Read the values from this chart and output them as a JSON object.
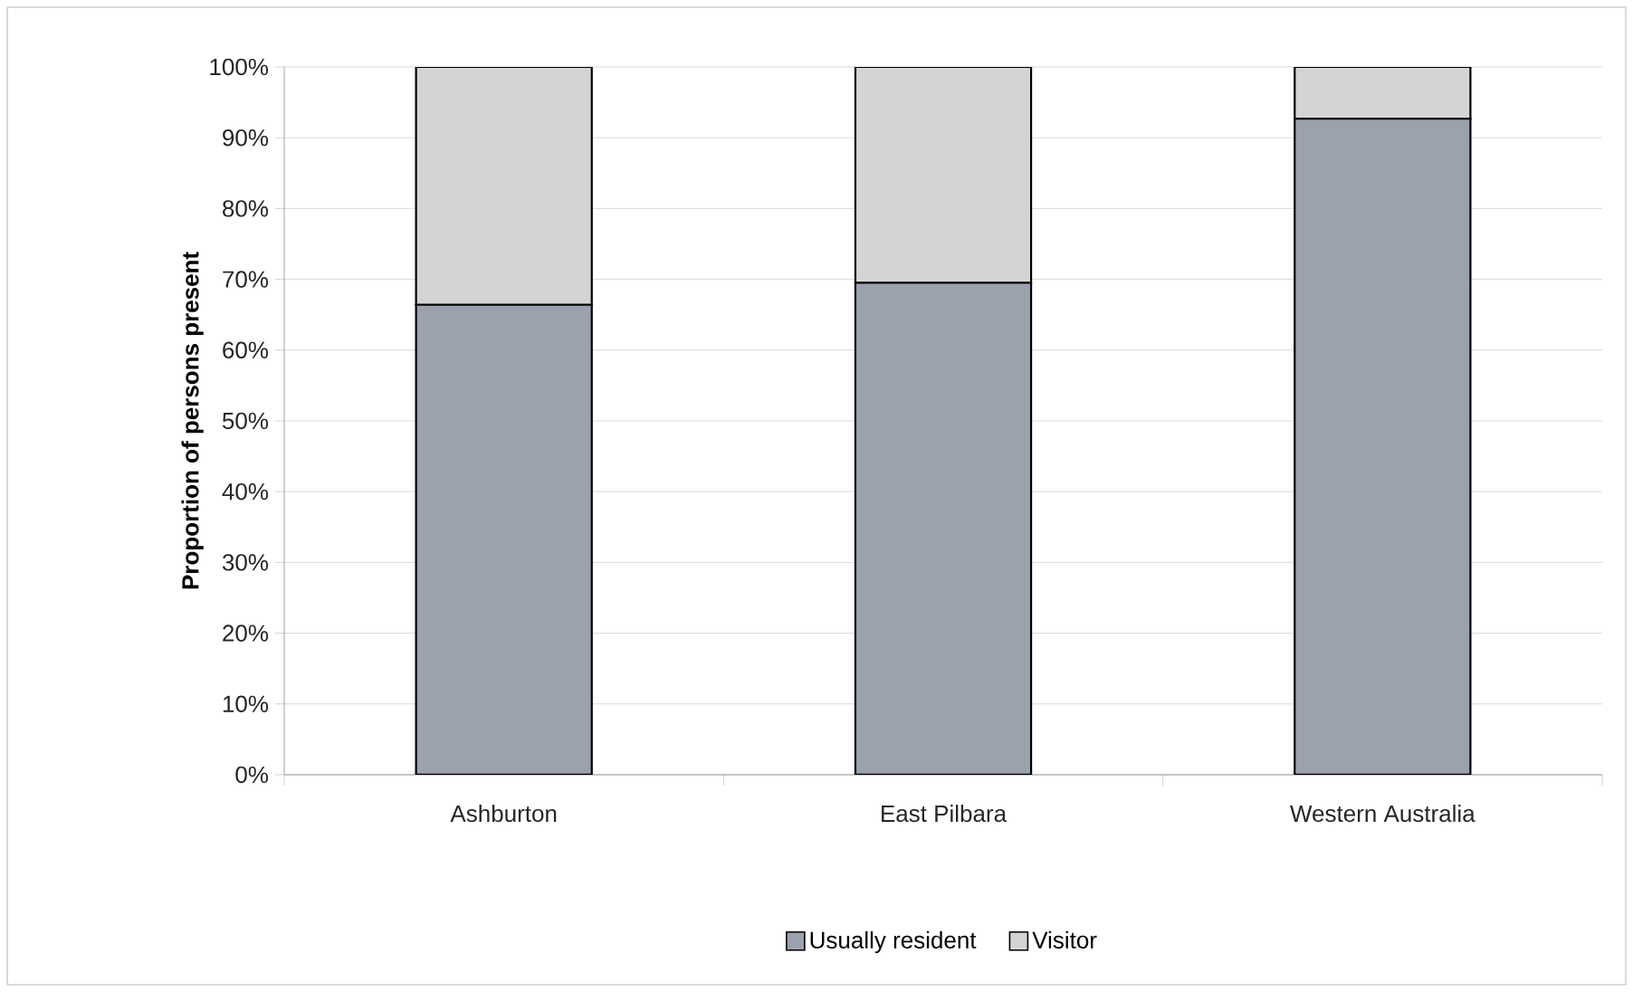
{
  "chart_data": {
    "type": "bar",
    "stacked": true,
    "ylabel": "Proportion of persons present",
    "categories": [
      "Ashburton",
      "East Pilbara",
      "Western Australia"
    ],
    "series": [
      {
        "name": "Usually resident",
        "color": "#9ba2ae",
        "values": [
          66.4,
          69.5,
          92.7
        ]
      },
      {
        "name": "Visitor",
        "color": "#d4d4d4",
        "values": [
          33.6,
          30.5,
          7.3
        ]
      }
    ],
    "ylim": [
      0,
      100
    ],
    "yticks": [
      {
        "value": 0,
        "label": "0%"
      },
      {
        "value": 10,
        "label": "10%"
      },
      {
        "value": 20,
        "label": "20%"
      },
      {
        "value": 30,
        "label": "30%"
      },
      {
        "value": 40,
        "label": "40%"
      },
      {
        "value": 50,
        "label": "50%"
      },
      {
        "value": 60,
        "label": "60%"
      },
      {
        "value": 70,
        "label": "70%"
      },
      {
        "value": 80,
        "label": "80%"
      },
      {
        "value": 90,
        "label": "90%"
      },
      {
        "value": 100,
        "label": "100%"
      }
    ],
    "grid": "y",
    "legend": "bottom"
  }
}
